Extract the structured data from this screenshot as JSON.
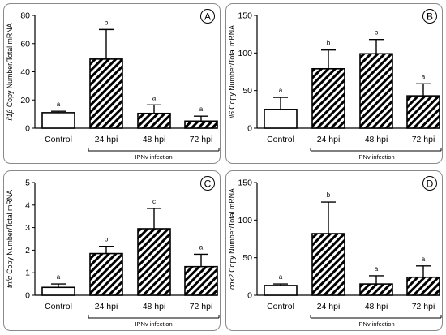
{
  "chart_data": [
    {
      "type": "bar",
      "panel_label": "A",
      "ylabel_gene": "il1β",
      "ylabel_rest": " Copy Number/Total mRNA",
      "categories": [
        "Control",
        "24 hpi",
        "48 hpi",
        "72 hpi"
      ],
      "values": [
        11,
        49,
        10.5,
        5
      ],
      "errors": [
        1,
        21,
        6,
        3.5
      ],
      "significance": [
        "a",
        "b",
        "a",
        "a"
      ],
      "ylim": [
        0,
        80
      ],
      "yticks": [
        0,
        20,
        40,
        60,
        80
      ],
      "group_label": "IPNv infection"
    },
    {
      "type": "bar",
      "panel_label": "B",
      "ylabel_gene": "il6",
      "ylabel_rest": " Copy Number/Total mRNA",
      "categories": [
        "Control",
        "24 hpi",
        "48 hpi",
        "72 hpi"
      ],
      "values": [
        25,
        79,
        99,
        43
      ],
      "errors": [
        16,
        25,
        19,
        16
      ],
      "significance": [
        "a",
        "b",
        "b",
        "a"
      ],
      "ylim": [
        0,
        150
      ],
      "yticks": [
        0,
        50,
        100,
        150
      ],
      "group_label": "IPNv infection"
    },
    {
      "type": "bar",
      "panel_label": "C",
      "ylabel_gene": "tnfα",
      "ylabel_rest": " Copy Number/Total mRNA",
      "categories": [
        "Control",
        "24 hpi",
        "48 hpi",
        "72 hpi"
      ],
      "values": [
        0.35,
        1.85,
        2.95,
        1.27
      ],
      "errors": [
        0.15,
        0.32,
        0.9,
        0.55
      ],
      "significance": [
        "a",
        "b",
        "c",
        "a"
      ],
      "ylim": [
        0,
        5
      ],
      "yticks": [
        0,
        1,
        2,
        3,
        4,
        5
      ],
      "group_label": "IPNv infection"
    },
    {
      "type": "bar",
      "panel_label": "D",
      "ylabel_gene": "cox2",
      "ylabel_rest": " Copy Number/Total mRNA",
      "categories": [
        "Control",
        "24 hpi",
        "48 hpi",
        "72 hpi"
      ],
      "values": [
        13,
        82,
        15,
        24
      ],
      "errors": [
        2,
        42,
        11,
        15
      ],
      "significance": [
        "a",
        "b",
        "a",
        "a"
      ],
      "ylim": [
        0,
        150
      ],
      "yticks": [
        0,
        50,
        100,
        150
      ],
      "group_label": "IPNv infection"
    }
  ],
  "colors": {
    "bar_stroke": "#000000",
    "hatch": "#000000",
    "panel_border": "#8a8a8a"
  }
}
